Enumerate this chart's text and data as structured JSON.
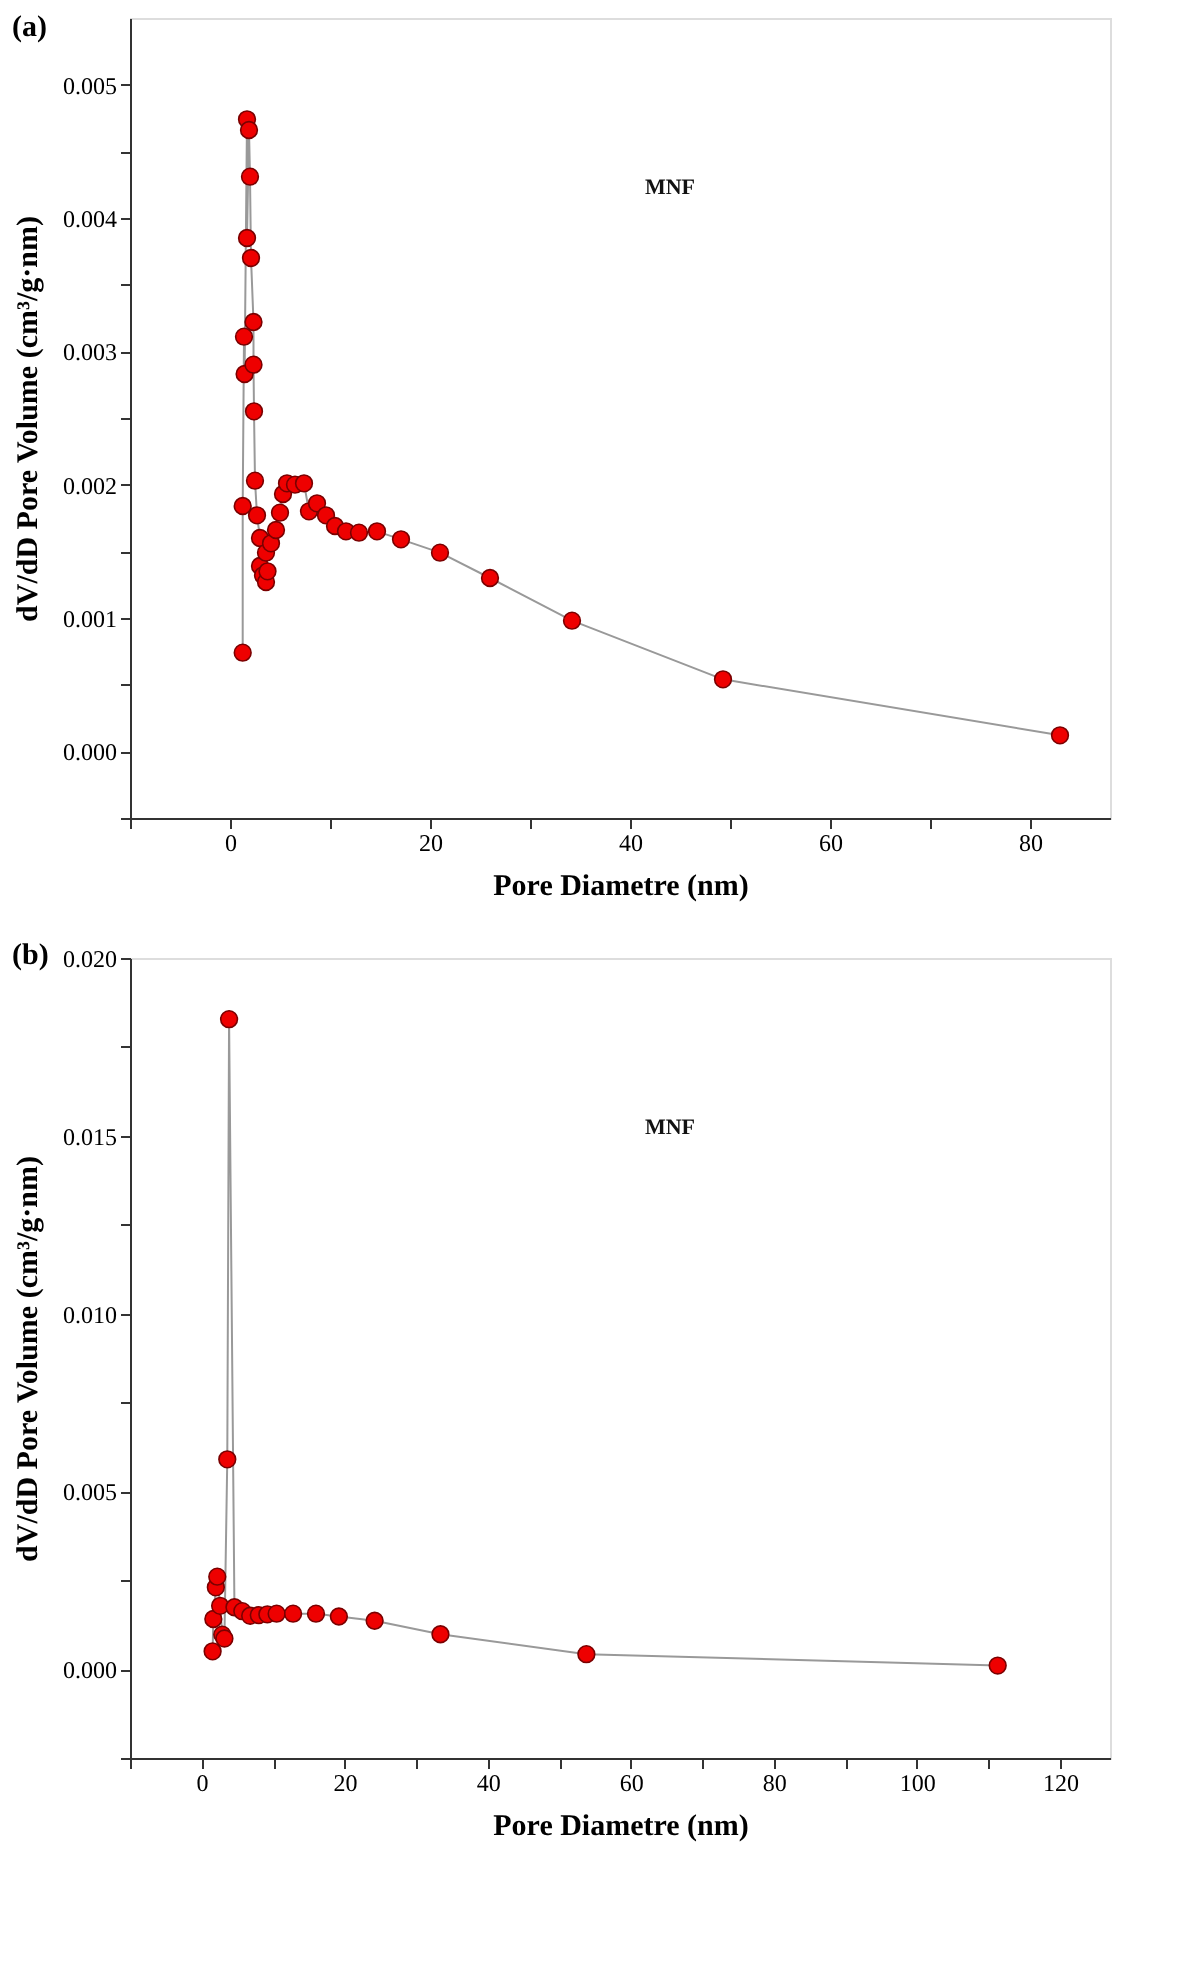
{
  "chart_data": [
    {
      "type": "line",
      "title": "(a)",
      "xlabel": "Pore Diametre (nm)",
      "ylabel": "dV/dD Pore Volume (cm³/g·nm)",
      "annotations": [
        "MNF"
      ],
      "marker": "circle",
      "line_style": "solid",
      "grid": false,
      "xlim": [
        -10,
        88
      ],
      "ylim": [
        -0.0005,
        0.0055
      ],
      "xticks": [
        {
          "value": -10,
          "label": null
        },
        0,
        {
          "value": 10,
          "label": null
        },
        20,
        {
          "value": 30,
          "label": null
        },
        40,
        {
          "value": 50,
          "label": null
        },
        60,
        {
          "value": 70,
          "label": null
        },
        80
      ],
      "yticks": [
        {
          "value": -0.0005,
          "label": null
        },
        {
          "value": 0,
          "label": "0.000"
        },
        {
          "value": 0.0005,
          "label": null
        },
        {
          "value": 0.001,
          "label": "0.001"
        },
        {
          "value": 0.0015,
          "label": null
        },
        {
          "value": 0.002,
          "label": "0.002"
        },
        {
          "value": 0.0025,
          "label": null
        },
        {
          "value": 0.003,
          "label": "0.003"
        },
        {
          "value": 0.0035,
          "label": null
        },
        {
          "value": 0.004,
          "label": "0.004"
        },
        {
          "value": 0.0045,
          "label": null
        },
        {
          "value": 0.005,
          "label": "0.005"
        }
      ],
      "series": [
        {
          "color": "#ee0000",
          "x": [
            1.27,
            1.27,
            1.4,
            1.46,
            1.7,
            1.7,
            1.9,
            2.0,
            2.1,
            2.35,
            2.35,
            2.4,
            2.5,
            2.7,
            3.0,
            3.0,
            3.3,
            3.6,
            3.75,
            3.6,
            4.1,
            4.6,
            5.0,
            5.3,
            5.7,
            6.5,
            7.4,
            7.9,
            8.7,
            9.6,
            10.5,
            11.6,
            12.9,
            14.7,
            17.1,
            21.0,
            26.0,
            34.2,
            49.3,
            83.0
          ],
          "values": [
            0.00074,
            0.00184,
            0.00311,
            0.00283,
            0.00474,
            0.00385,
            0.00466,
            0.00431,
            0.0037,
            0.00322,
            0.0029,
            0.00255,
            0.00203,
            0.00177,
            0.0016,
            0.00139,
            0.00132,
            0.00127,
            0.00135,
            0.00149,
            0.00156,
            0.00166,
            0.00179,
            0.00193,
            0.00201,
            0.002,
            0.00201,
            0.0018,
            0.00186,
            0.00177,
            0.00169,
            0.00165,
            0.00164,
            0.00165,
            0.00159,
            0.00149,
            0.0013,
            0.00098,
            0.00054,
            0.00012
          ]
        }
      ]
    },
    {
      "type": "line",
      "title": "(b)",
      "xlabel": "Pore Diametre (nm)",
      "ylabel": "dV/dD Pore Volume (cm³/g·nm)",
      "annotations": [
        "MNF"
      ],
      "marker": "circle",
      "line_style": "solid",
      "grid": false,
      "xlim": [
        -10,
        127
      ],
      "ylim": [
        -0.0025,
        0.02
      ],
      "xticks": [
        {
          "value": -10,
          "label": null
        },
        0,
        {
          "value": 10,
          "label": null
        },
        20,
        {
          "value": 30,
          "label": null
        },
        40,
        {
          "value": 50,
          "label": null
        },
        60,
        {
          "value": 70,
          "label": null
        },
        80,
        {
          "value": 90,
          "label": null
        },
        100,
        {
          "value": 110,
          "label": null
        },
        120
      ],
      "yticks": [
        {
          "value": -0.0025,
          "label": null
        },
        {
          "value": 0,
          "label": "0.000"
        },
        {
          "value": 0.0025,
          "label": null
        },
        {
          "value": 0.005,
          "label": "0.005"
        },
        {
          "value": 0.0075,
          "label": null
        },
        {
          "value": 0.01,
          "label": "0.010"
        },
        {
          "value": 0.0125,
          "label": null
        },
        {
          "value": 0.015,
          "label": "0.015"
        },
        {
          "value": 0.0175,
          "label": null
        },
        {
          "value": 0.02,
          "label": "0.020"
        }
      ],
      "series": [
        {
          "color": "#ee0000",
          "x": [
            1.55,
            1.65,
            2.0,
            2.2,
            2.6,
            2.9,
            3.2,
            3.6,
            3.85,
            4.6,
            5.7,
            6.8,
            8.0,
            9.2,
            10.5,
            12.8,
            16.0,
            19.2,
            24.2,
            33.4,
            53.8,
            111.3
          ],
          "values": [
            0.0005,
            0.00141,
            0.0023,
            0.0026,
            0.00178,
            0.00097,
            0.00086,
            0.0059,
            0.01828,
            0.00174,
            0.00163,
            0.0015,
            0.00152,
            0.00154,
            0.00156,
            0.00156,
            0.00156,
            0.00148,
            0.00136,
            0.00098,
            0.00042,
            0.0001
          ]
        }
      ]
    }
  ]
}
